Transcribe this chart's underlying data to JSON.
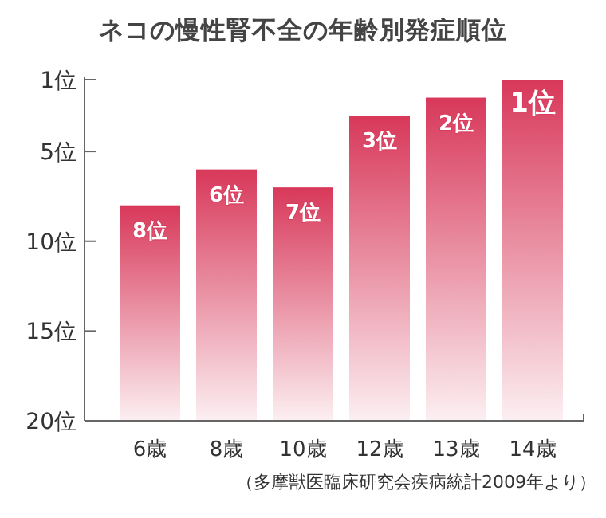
{
  "chart_data": {
    "type": "bar",
    "title": "ネコの慢性腎不全の年齢別発症順位",
    "categories": [
      "6歳",
      "8歳",
      "10歳",
      "12歳",
      "13歳",
      "14歳"
    ],
    "values": [
      -12,
      -14,
      -13,
      -17,
      -18,
      -19
    ],
    "base": [
      20,
      20,
      20,
      20,
      20,
      20
    ],
    "value_labels": [
      "8位",
      "6位",
      "7位",
      "3位",
      "2位",
      "1位"
    ],
    "color": "#d8385a",
    "ylim": [
      20,
      1
    ],
    "yticks": [
      {
        "value": 1,
        "label": "1位"
      },
      {
        "value": 5,
        "label": "5位"
      },
      {
        "value": 10,
        "label": "10位"
      },
      {
        "value": 15,
        "label": "15位"
      },
      {
        "value": 20,
        "label": "20位"
      }
    ],
    "grid": false,
    "annotations": [
      "（多摩獣医臨床研究会疾病統計2009年より）"
    ]
  }
}
